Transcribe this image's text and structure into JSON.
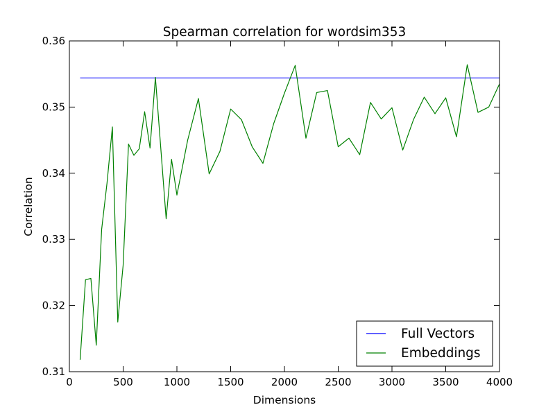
{
  "chart_data": {
    "type": "line",
    "title": "Spearman correlation for wordsim353",
    "xlabel": "Dimensions",
    "ylabel": "Correlation",
    "xlim": [
      0,
      4000
    ],
    "ylim": [
      0.31,
      0.36
    ],
    "x_ticks": [
      "0",
      "500",
      "1000",
      "1500",
      "2000",
      "2500",
      "3000",
      "3500",
      "4000"
    ],
    "y_ticks": [
      "0.31",
      "0.32",
      "0.33",
      "0.34",
      "0.35",
      "0.36"
    ],
    "grid": false,
    "legend_position": "lower-right",
    "series": [
      {
        "name": "Full Vectors",
        "color": "#0000ff",
        "x": [
          100,
          4000
        ],
        "y": [
          0.3544,
          0.3544
        ]
      },
      {
        "name": "Embeddings",
        "color": "#008000",
        "x": [
          100,
          150,
          200,
          250,
          300,
          350,
          400,
          450,
          500,
          550,
          600,
          650,
          700,
          750,
          800,
          900,
          950,
          1000,
          1100,
          1200,
          1300,
          1400,
          1500,
          1600,
          1700,
          1800,
          1900,
          2000,
          2100,
          2200,
          2300,
          2400,
          2500,
          2600,
          2700,
          2800,
          2900,
          3000,
          3100,
          3200,
          3300,
          3400,
          3500,
          3600,
          3700,
          3800,
          3900,
          4000
        ],
        "y": [
          0.3118,
          0.3239,
          0.3241,
          0.314,
          0.3315,
          0.3385,
          0.347,
          0.3175,
          0.3261,
          0.3444,
          0.3427,
          0.3437,
          0.3493,
          0.3438,
          0.3545,
          0.3331,
          0.3421,
          0.3367,
          0.345,
          0.3513,
          0.3399,
          0.3433,
          0.3497,
          0.3481,
          0.344,
          0.3415,
          0.3475,
          0.3521,
          0.3563,
          0.3453,
          0.3522,
          0.3525,
          0.344,
          0.3453,
          0.3428,
          0.3507,
          0.3482,
          0.3499,
          0.3435,
          0.3481,
          0.3515,
          0.349,
          0.3514,
          0.3455,
          0.3564,
          0.3492,
          0.35,
          0.3535
        ]
      }
    ]
  }
}
